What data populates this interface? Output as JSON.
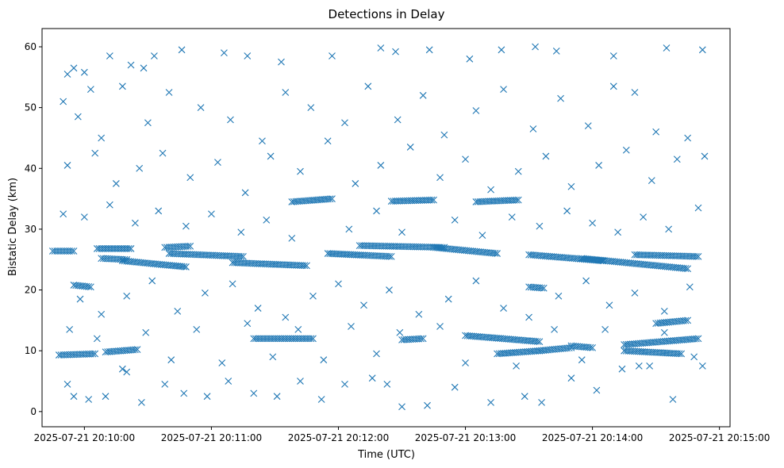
{
  "chart_data": {
    "type": "scatter",
    "title": "Detections in Delay",
    "xlabel": "Time (UTC)",
    "ylabel": "Bistatic Delay (km)",
    "marker": "x",
    "color": "#1f77b4",
    "grid": false,
    "legend": "none",
    "xlim": [
      "2025-07-21 20:09:40",
      "2025-07-21 20:15:05"
    ],
    "ylim": [
      -2.5,
      63
    ],
    "x_ticks": [
      "2025-07-21 20:10:00",
      "2025-07-21 20:11:00",
      "2025-07-21 20:12:00",
      "2025-07-21 20:13:00",
      "2025-07-21 20:14:00",
      "2025-07-21 20:15:00"
    ],
    "y_ticks": [
      0,
      10,
      20,
      30,
      40,
      50,
      60
    ],
    "tracks": [
      {
        "from": [
          "2025-07-21 20:09:45",
          26.4
        ],
        "to": [
          "2025-07-21 20:09:55",
          26.4
        ]
      },
      {
        "from": [
          "2025-07-21 20:10:06",
          26.8
        ],
        "to": [
          "2025-07-21 20:10:22",
          26.8
        ]
      },
      {
        "from": [
          "2025-07-21 20:10:08",
          25.2
        ],
        "to": [
          "2025-07-21 20:10:20",
          25.0
        ]
      },
      {
        "from": [
          "2025-07-21 20:10:18",
          24.8
        ],
        "to": [
          "2025-07-21 20:10:48",
          23.8
        ]
      },
      {
        "from": [
          "2025-07-21 20:10:38",
          27.0
        ],
        "to": [
          "2025-07-21 20:10:50",
          27.2
        ]
      },
      {
        "from": [
          "2025-07-21 20:10:40",
          26.0
        ],
        "to": [
          "2025-07-21 20:11:15",
          25.5
        ]
      },
      {
        "from": [
          "2025-07-21 20:11:10",
          24.5
        ],
        "to": [
          "2025-07-21 20:11:45",
          24.0
        ]
      },
      {
        "from": [
          "2025-07-21 20:11:38",
          34.5
        ],
        "to": [
          "2025-07-21 20:11:57",
          35.0
        ]
      },
      {
        "from": [
          "2025-07-21 20:11:55",
          26.0
        ],
        "to": [
          "2025-07-21 20:12:25",
          25.5
        ]
      },
      {
        "from": [
          "2025-07-21 20:12:10",
          27.3
        ],
        "to": [
          "2025-07-21 20:12:50",
          27.0
        ]
      },
      {
        "from": [
          "2025-07-21 20:12:25",
          34.6
        ],
        "to": [
          "2025-07-21 20:12:45",
          34.8
        ]
      },
      {
        "from": [
          "2025-07-21 20:12:45",
          27.0
        ],
        "to": [
          "2025-07-21 20:13:15",
          26.0
        ]
      },
      {
        "from": [
          "2025-07-21 20:13:05",
          34.5
        ],
        "to": [
          "2025-07-21 20:13:25",
          34.8
        ]
      },
      {
        "from": [
          "2025-07-21 20:13:30",
          25.8
        ],
        "to": [
          "2025-07-21 20:14:05",
          24.8
        ]
      },
      {
        "from": [
          "2025-07-21 20:13:55",
          25.2
        ],
        "to": [
          "2025-07-21 20:14:45",
          23.5
        ]
      },
      {
        "from": [
          "2025-07-21 20:14:20",
          25.8
        ],
        "to": [
          "2025-07-21 20:14:50",
          25.5
        ]
      },
      {
        "from": [
          "2025-07-21 20:09:48",
          9.3
        ],
        "to": [
          "2025-07-21 20:10:05",
          9.5
        ]
      },
      {
        "from": [
          "2025-07-21 20:10:10",
          9.8
        ],
        "to": [
          "2025-07-21 20:10:25",
          10.2
        ]
      },
      {
        "from": [
          "2025-07-21 20:09:55",
          20.8
        ],
        "to": [
          "2025-07-21 20:10:03",
          20.5
        ]
      },
      {
        "from": [
          "2025-07-21 20:11:20",
          12.0
        ],
        "to": [
          "2025-07-21 20:11:48",
          12.0
        ]
      },
      {
        "from": [
          "2025-07-21 20:12:30",
          11.8
        ],
        "to": [
          "2025-07-21 20:12:40",
          12.0
        ]
      },
      {
        "from": [
          "2025-07-21 20:13:00",
          12.5
        ],
        "to": [
          "2025-07-21 20:13:35",
          11.5
        ]
      },
      {
        "from": [
          "2025-07-21 20:13:15",
          9.5
        ],
        "to": [
          "2025-07-21 20:13:35",
          10.0
        ]
      },
      {
        "from": [
          "2025-07-21 20:13:35",
          10.0
        ],
        "to": [
          "2025-07-21 20:13:50",
          10.5
        ]
      },
      {
        "from": [
          "2025-07-21 20:13:50",
          10.8
        ],
        "to": [
          "2025-07-21 20:14:00",
          10.5
        ]
      },
      {
        "from": [
          "2025-07-21 20:14:15",
          10.0
        ],
        "to": [
          "2025-07-21 20:14:42",
          9.5
        ]
      },
      {
        "from": [
          "2025-07-21 20:14:15",
          11.0
        ],
        "to": [
          "2025-07-21 20:14:50",
          12.0
        ]
      },
      {
        "from": [
          "2025-07-21 20:14:30",
          14.5
        ],
        "to": [
          "2025-07-21 20:14:45",
          15.0
        ]
      },
      {
        "from": [
          "2025-07-21 20:13:30",
          20.5
        ],
        "to": [
          "2025-07-21 20:13:37",
          20.3
        ]
      }
    ],
    "scatter_points": [
      [
        "2025-07-21 20:09:50",
        51.0
      ],
      [
        "2025-07-21 20:09:52",
        55.5
      ],
      [
        "2025-07-21 20:09:55",
        56.5
      ],
      [
        "2025-07-21 20:10:00",
        55.8
      ],
      [
        "2025-07-21 20:10:03",
        53.0
      ],
      [
        "2025-07-21 20:10:12",
        58.5
      ],
      [
        "2025-07-21 20:10:22",
        57.0
      ],
      [
        "2025-07-21 20:10:28",
        56.5
      ],
      [
        "2025-07-21 20:10:33",
        58.5
      ],
      [
        "2025-07-21 20:10:46",
        59.5
      ],
      [
        "2025-07-21 20:11:06",
        59.0
      ],
      [
        "2025-07-21 20:11:17",
        58.5
      ],
      [
        "2025-07-21 20:11:33",
        57.5
      ],
      [
        "2025-07-21 20:11:57",
        58.5
      ],
      [
        "2025-07-21 20:12:20",
        59.8
      ],
      [
        "2025-07-21 20:12:27",
        59.2
      ],
      [
        "2025-07-21 20:12:43",
        59.5
      ],
      [
        "2025-07-21 20:13:02",
        58.0
      ],
      [
        "2025-07-21 20:13:17",
        59.5
      ],
      [
        "2025-07-21 20:13:33",
        60.0
      ],
      [
        "2025-07-21 20:13:43",
        59.3
      ],
      [
        "2025-07-21 20:14:10",
        58.5
      ],
      [
        "2025-07-21 20:14:35",
        59.8
      ],
      [
        "2025-07-21 20:14:52",
        59.5
      ],
      [
        "2025-07-21 20:09:57",
        48.5
      ],
      [
        "2025-07-21 20:10:08",
        45.0
      ],
      [
        "2025-07-21 20:10:18",
        53.5
      ],
      [
        "2025-07-21 20:10:30",
        47.5
      ],
      [
        "2025-07-21 20:10:40",
        52.5
      ],
      [
        "2025-07-21 20:10:55",
        50.0
      ],
      [
        "2025-07-21 20:11:09",
        48.0
      ],
      [
        "2025-07-21 20:11:24",
        44.5
      ],
      [
        "2025-07-21 20:11:35",
        52.5
      ],
      [
        "2025-07-21 20:11:47",
        50.0
      ],
      [
        "2025-07-21 20:12:03",
        47.5
      ],
      [
        "2025-07-21 20:12:14",
        53.5
      ],
      [
        "2025-07-21 20:12:28",
        48.0
      ],
      [
        "2025-07-21 20:12:40",
        52.0
      ],
      [
        "2025-07-21 20:12:50",
        45.5
      ],
      [
        "2025-07-21 20:13:05",
        49.5
      ],
      [
        "2025-07-21 20:13:18",
        53.0
      ],
      [
        "2025-07-21 20:13:32",
        46.5
      ],
      [
        "2025-07-21 20:13:45",
        51.5
      ],
      [
        "2025-07-21 20:13:58",
        47.0
      ],
      [
        "2025-07-21 20:14:10",
        53.5
      ],
      [
        "2025-07-21 20:14:20",
        52.5
      ],
      [
        "2025-07-21 20:14:30",
        46.0
      ],
      [
        "2025-07-21 20:14:45",
        45.0
      ],
      [
        "2025-07-21 20:09:52",
        40.5
      ],
      [
        "2025-07-21 20:10:05",
        42.5
      ],
      [
        "2025-07-21 20:10:15",
        37.5
      ],
      [
        "2025-07-21 20:10:26",
        40.0
      ],
      [
        "2025-07-21 20:10:37",
        42.5
      ],
      [
        "2025-07-21 20:10:50",
        38.5
      ],
      [
        "2025-07-21 20:11:03",
        41.0
      ],
      [
        "2025-07-21 20:11:16",
        36.0
      ],
      [
        "2025-07-21 20:11:28",
        42.0
      ],
      [
        "2025-07-21 20:11:42",
        39.5
      ],
      [
        "2025-07-21 20:11:55",
        44.5
      ],
      [
        "2025-07-21 20:12:08",
        37.5
      ],
      [
        "2025-07-21 20:12:20",
        40.5
      ],
      [
        "2025-07-21 20:12:34",
        43.5
      ],
      [
        "2025-07-21 20:12:48",
        38.5
      ],
      [
        "2025-07-21 20:13:00",
        41.5
      ],
      [
        "2025-07-21 20:13:12",
        36.5
      ],
      [
        "2025-07-21 20:13:25",
        39.5
      ],
      [
        "2025-07-21 20:13:38",
        42.0
      ],
      [
        "2025-07-21 20:13:50",
        37.0
      ],
      [
        "2025-07-21 20:14:03",
        40.5
      ],
      [
        "2025-07-21 20:14:16",
        43.0
      ],
      [
        "2025-07-21 20:14:28",
        38.0
      ],
      [
        "2025-07-21 20:14:40",
        41.5
      ],
      [
        "2025-07-21 20:14:53",
        42.0
      ],
      [
        "2025-07-21 20:09:50",
        32.5
      ],
      [
        "2025-07-21 20:10:00",
        32.0
      ],
      [
        "2025-07-21 20:10:12",
        34.0
      ],
      [
        "2025-07-21 20:10:24",
        31.0
      ],
      [
        "2025-07-21 20:10:35",
        33.0
      ],
      [
        "2025-07-21 20:10:48",
        30.5
      ],
      [
        "2025-07-21 20:11:00",
        32.5
      ],
      [
        "2025-07-21 20:11:14",
        29.5
      ],
      [
        "2025-07-21 20:11:26",
        31.5
      ],
      [
        "2025-07-21 20:11:38",
        28.5
      ],
      [
        "2025-07-21 20:12:05",
        30.0
      ],
      [
        "2025-07-21 20:12:18",
        33.0
      ],
      [
        "2025-07-21 20:12:30",
        29.5
      ],
      [
        "2025-07-21 20:12:55",
        31.5
      ],
      [
        "2025-07-21 20:13:08",
        29.0
      ],
      [
        "2025-07-21 20:13:22",
        32.0
      ],
      [
        "2025-07-21 20:13:35",
        30.5
      ],
      [
        "2025-07-21 20:13:48",
        33.0
      ],
      [
        "2025-07-21 20:14:00",
        31.0
      ],
      [
        "2025-07-21 20:14:12",
        29.5
      ],
      [
        "2025-07-21 20:14:24",
        32.0
      ],
      [
        "2025-07-21 20:14:36",
        30.0
      ],
      [
        "2025-07-21 20:14:50",
        33.5
      ],
      [
        "2025-07-21 20:09:58",
        18.5
      ],
      [
        "2025-07-21 20:10:08",
        16.0
      ],
      [
        "2025-07-21 20:10:20",
        19.0
      ],
      [
        "2025-07-21 20:10:32",
        21.5
      ],
      [
        "2025-07-21 20:10:44",
        16.5
      ],
      [
        "2025-07-21 20:10:57",
        19.5
      ],
      [
        "2025-07-21 20:11:10",
        21.0
      ],
      [
        "2025-07-21 20:11:22",
        17.0
      ],
      [
        "2025-07-21 20:11:35",
        15.5
      ],
      [
        "2025-07-21 20:11:48",
        19.0
      ],
      [
        "2025-07-21 20:12:00",
        21.0
      ],
      [
        "2025-07-21 20:12:12",
        17.5
      ],
      [
        "2025-07-21 20:12:24",
        20.0
      ],
      [
        "2025-07-21 20:12:38",
        16.0
      ],
      [
        "2025-07-21 20:12:52",
        18.5
      ],
      [
        "2025-07-21 20:13:05",
        21.5
      ],
      [
        "2025-07-21 20:13:18",
        17.0
      ],
      [
        "2025-07-21 20:13:30",
        15.5
      ],
      [
        "2025-07-21 20:13:44",
        19.0
      ],
      [
        "2025-07-21 20:13:57",
        21.5
      ],
      [
        "2025-07-21 20:14:08",
        17.5
      ],
      [
        "2025-07-21 20:14:20",
        19.5
      ],
      [
        "2025-07-21 20:14:34",
        16.5
      ],
      [
        "2025-07-21 20:14:46",
        20.5
      ],
      [
        "2025-07-21 20:09:52",
        4.5
      ],
      [
        "2025-07-21 20:09:55",
        2.5
      ],
      [
        "2025-07-21 20:10:02",
        2.0
      ],
      [
        "2025-07-21 20:10:10",
        2.5
      ],
      [
        "2025-07-21 20:10:20",
        6.5
      ],
      [
        "2025-07-21 20:10:27",
        1.5
      ],
      [
        "2025-07-21 20:10:38",
        4.5
      ],
      [
        "2025-07-21 20:10:47",
        3.0
      ],
      [
        "2025-07-21 20:10:58",
        2.5
      ],
      [
        "2025-07-21 20:11:08",
        5.0
      ],
      [
        "2025-07-21 20:11:20",
        3.0
      ],
      [
        "2025-07-21 20:11:31",
        2.5
      ],
      [
        "2025-07-21 20:11:42",
        5.0
      ],
      [
        "2025-07-21 20:11:52",
        2.0
      ],
      [
        "2025-07-21 20:12:03",
        4.5
      ],
      [
        "2025-07-21 20:12:16",
        5.5
      ],
      [
        "2025-07-21 20:12:23",
        4.5
      ],
      [
        "2025-07-21 20:12:30",
        0.8
      ],
      [
        "2025-07-21 20:12:42",
        1.0
      ],
      [
        "2025-07-21 20:12:55",
        4.0
      ],
      [
        "2025-07-21 20:13:12",
        1.5
      ],
      [
        "2025-07-21 20:13:28",
        2.5
      ],
      [
        "2025-07-21 20:13:36",
        1.5
      ],
      [
        "2025-07-21 20:13:50",
        5.5
      ],
      [
        "2025-07-21 20:14:02",
        3.5
      ],
      [
        "2025-07-21 20:14:14",
        7.0
      ],
      [
        "2025-07-21 20:14:27",
        7.5
      ],
      [
        "2025-07-21 20:14:38",
        2.0
      ],
      [
        "2025-07-21 20:14:52",
        7.5
      ],
      [
        "2025-07-21 20:09:53",
        13.5
      ],
      [
        "2025-07-21 20:10:06",
        12.0
      ],
      [
        "2025-07-21 20:10:18",
        7.0
      ],
      [
        "2025-07-21 20:10:29",
        13.0
      ],
      [
        "2025-07-21 20:10:41",
        8.5
      ],
      [
        "2025-07-21 20:10:53",
        13.5
      ],
      [
        "2025-07-21 20:11:05",
        8.0
      ],
      [
        "2025-07-21 20:11:17",
        14.5
      ],
      [
        "2025-07-21 20:11:29",
        9.0
      ],
      [
        "2025-07-21 20:11:41",
        13.5
      ],
      [
        "2025-07-21 20:11:53",
        8.5
      ],
      [
        "2025-07-21 20:12:06",
        14.0
      ],
      [
        "2025-07-21 20:12:18",
        9.5
      ],
      [
        "2025-07-21 20:12:29",
        13.0
      ],
      [
        "2025-07-21 20:12:48",
        14.0
      ],
      [
        "2025-07-21 20:13:00",
        8.0
      ],
      [
        "2025-07-21 20:13:24",
        7.5
      ],
      [
        "2025-07-21 20:13:42",
        13.5
      ],
      [
        "2025-07-21 20:13:55",
        8.5
      ],
      [
        "2025-07-21 20:14:06",
        13.5
      ],
      [
        "2025-07-21 20:14:22",
        7.5
      ],
      [
        "2025-07-21 20:14:34",
        13.0
      ],
      [
        "2025-07-21 20:14:48",
        9.0
      ]
    ]
  }
}
